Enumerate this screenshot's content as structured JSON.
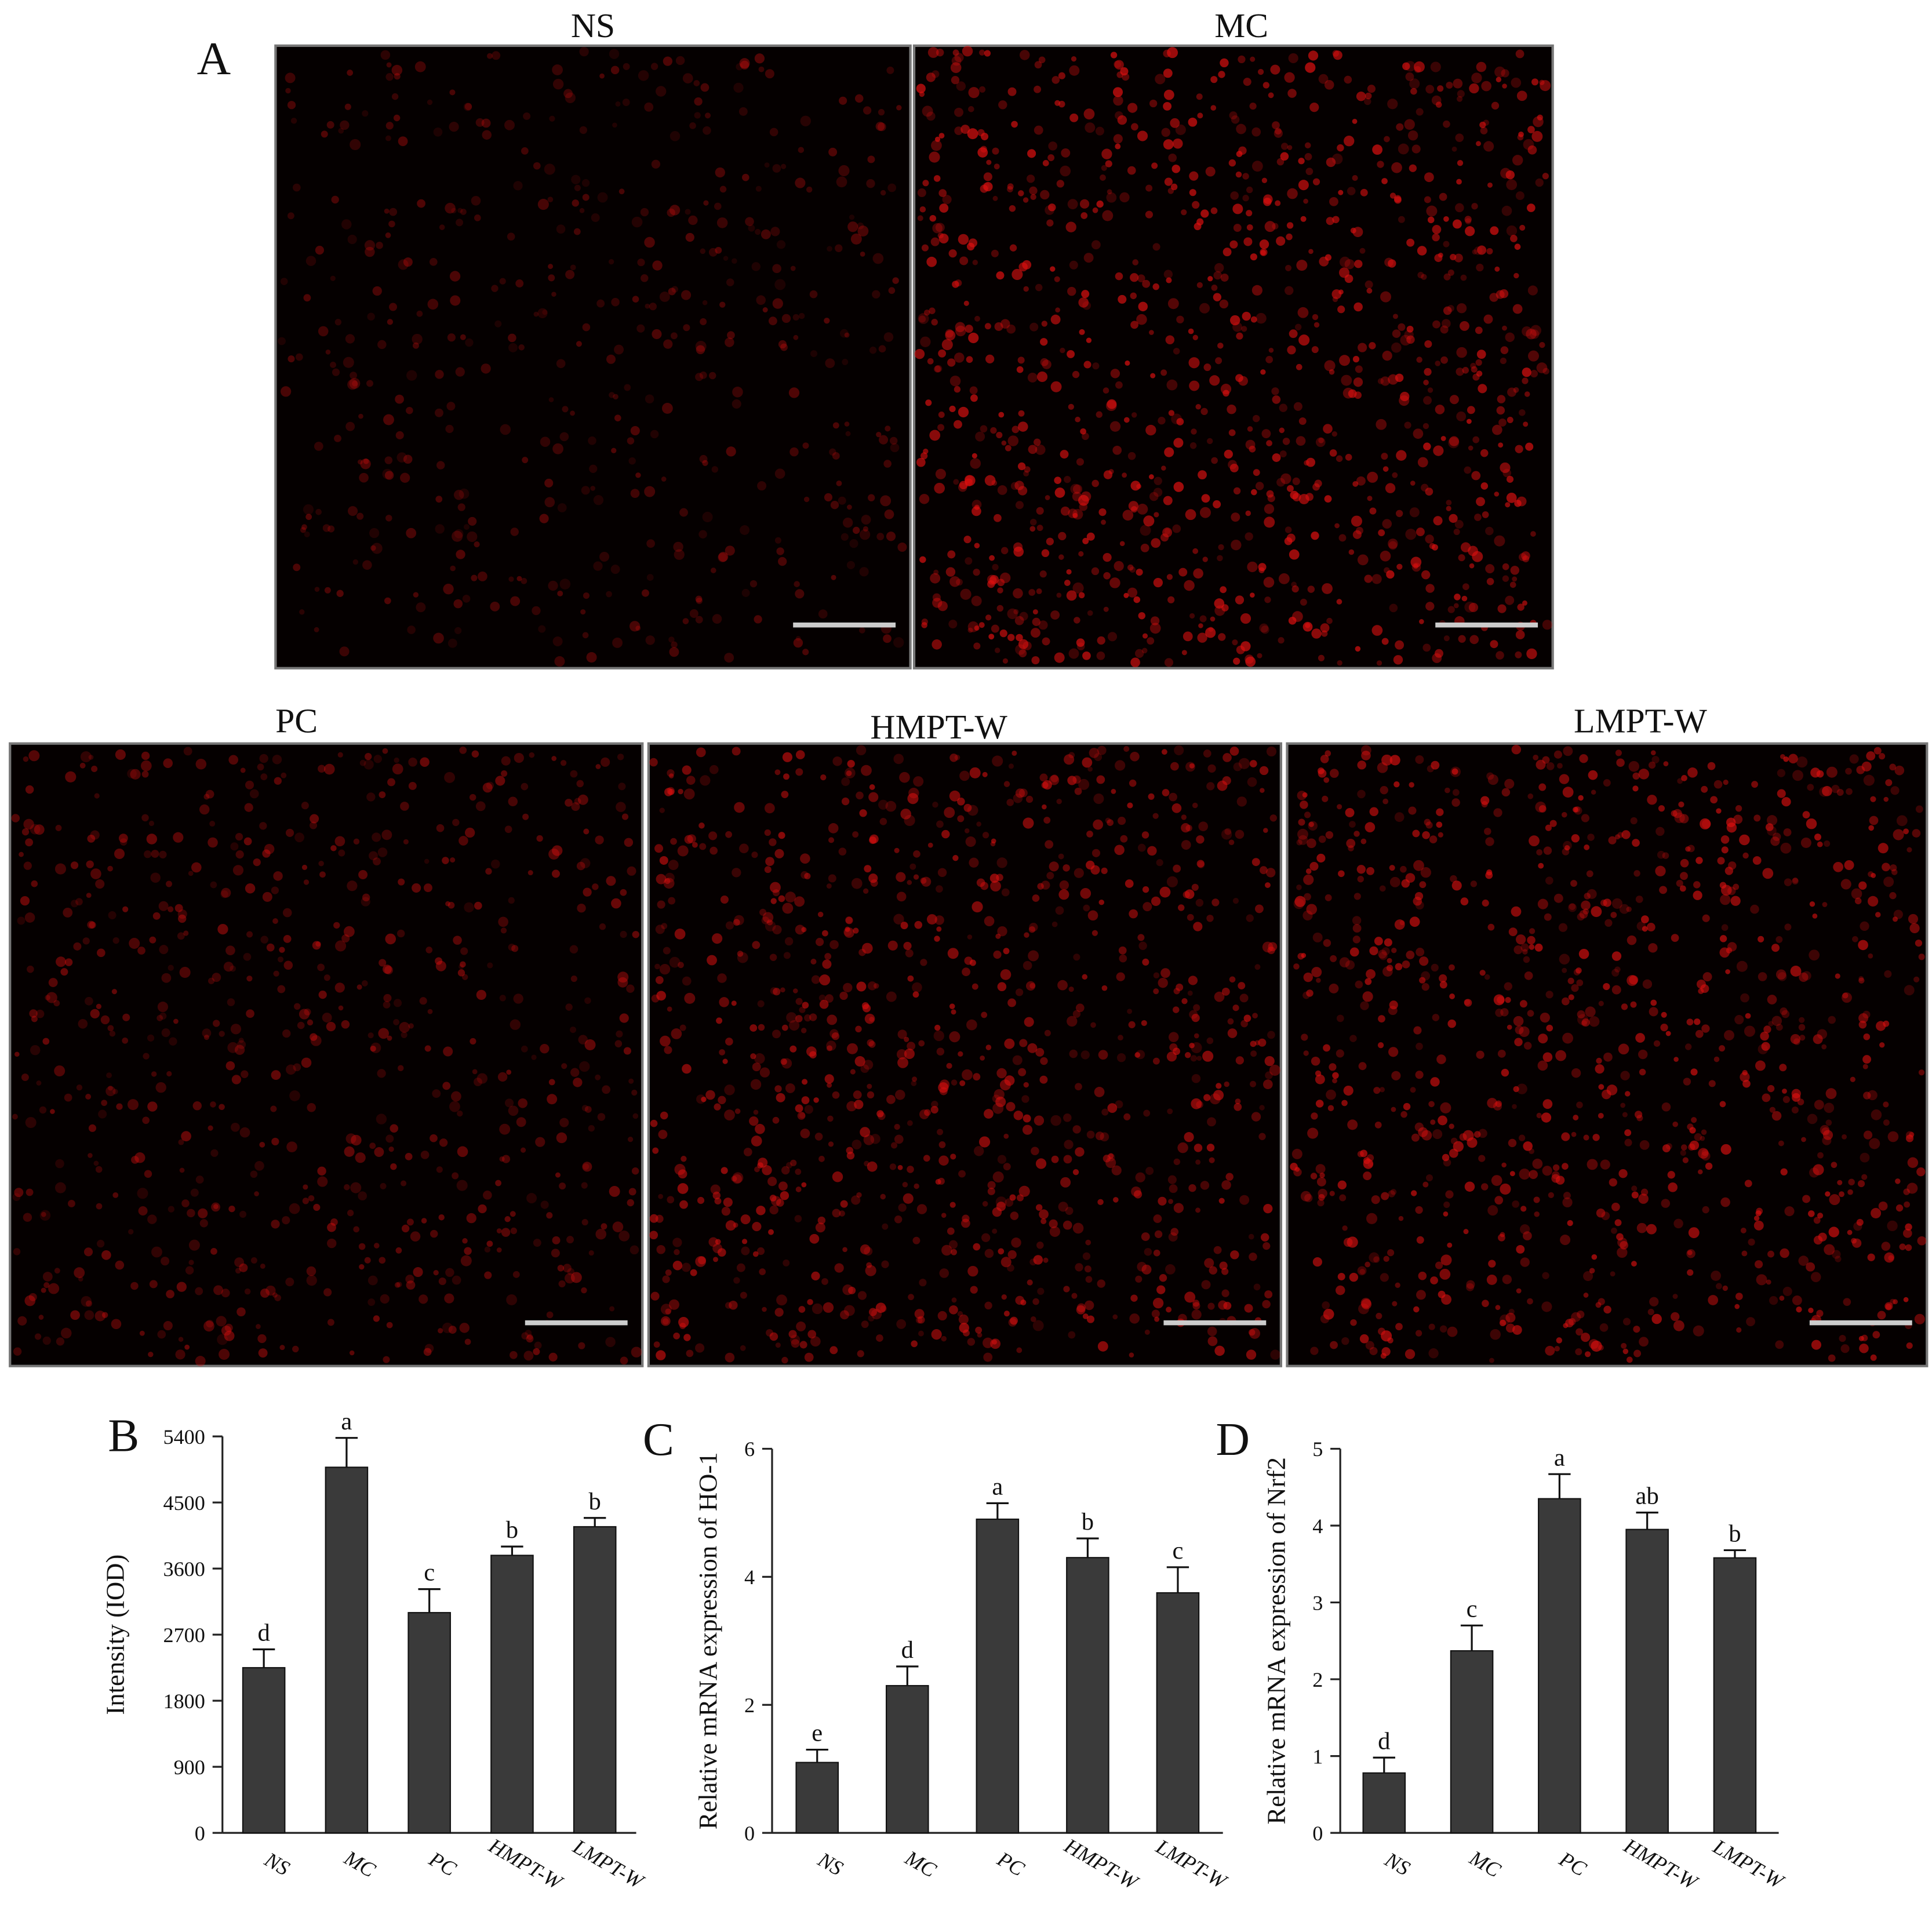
{
  "panel_a": {
    "label": "A",
    "images": [
      "NS",
      "MC",
      "PC",
      "HMPT-W",
      "LMPT-W"
    ]
  },
  "chart_data": [
    {
      "type": "bar",
      "panel": "B",
      "y_label": "Intensity (IOD)",
      "categories": [
        "NS",
        "MC",
        "PC",
        "HMPT-W",
        "LMPT-W"
      ],
      "values": [
        2250,
        4980,
        3000,
        3780,
        4170
      ],
      "errors": [
        250,
        400,
        320,
        120,
        120
      ],
      "annotations": [
        "d",
        "a",
        "c",
        "b",
        "b"
      ],
      "color": "#3a3a3a",
      "ylim": [
        0,
        5400
      ],
      "yticks": [
        0,
        900,
        1800,
        2700,
        3600,
        4500,
        5400
      ]
    },
    {
      "type": "bar",
      "panel": "C",
      "y_label": "Relative mRNA expression of HO-1",
      "categories": [
        "NS",
        "MC",
        "PC",
        "HMPT-W",
        "LMPT-W"
      ],
      "values": [
        1.1,
        2.3,
        4.9,
        4.3,
        3.75
      ],
      "errors": [
        0.2,
        0.3,
        0.25,
        0.3,
        0.4
      ],
      "annotations": [
        "e",
        "d",
        "a",
        "b",
        "c"
      ],
      "color": "#3a3a3a",
      "ylim": [
        0,
        6
      ],
      "yticks": [
        0,
        2,
        4,
        6
      ]
    },
    {
      "type": "bar",
      "panel": "D",
      "y_label": "Relative mRNA expression of Nrf2",
      "categories": [
        "NS",
        "MC",
        "PC",
        "HMPT-W",
        "LMPT-W"
      ],
      "values": [
        0.78,
        2.37,
        4.35,
        3.95,
        3.58
      ],
      "errors": [
        0.2,
        0.33,
        0.32,
        0.22,
        0.1
      ],
      "annotations": [
        "d",
        "c",
        "a",
        "ab",
        "b"
      ],
      "color": "#3a3a3a",
      "ylim": [
        0,
        5
      ],
      "yticks": [
        0,
        1,
        2,
        3,
        4,
        5
      ]
    }
  ]
}
